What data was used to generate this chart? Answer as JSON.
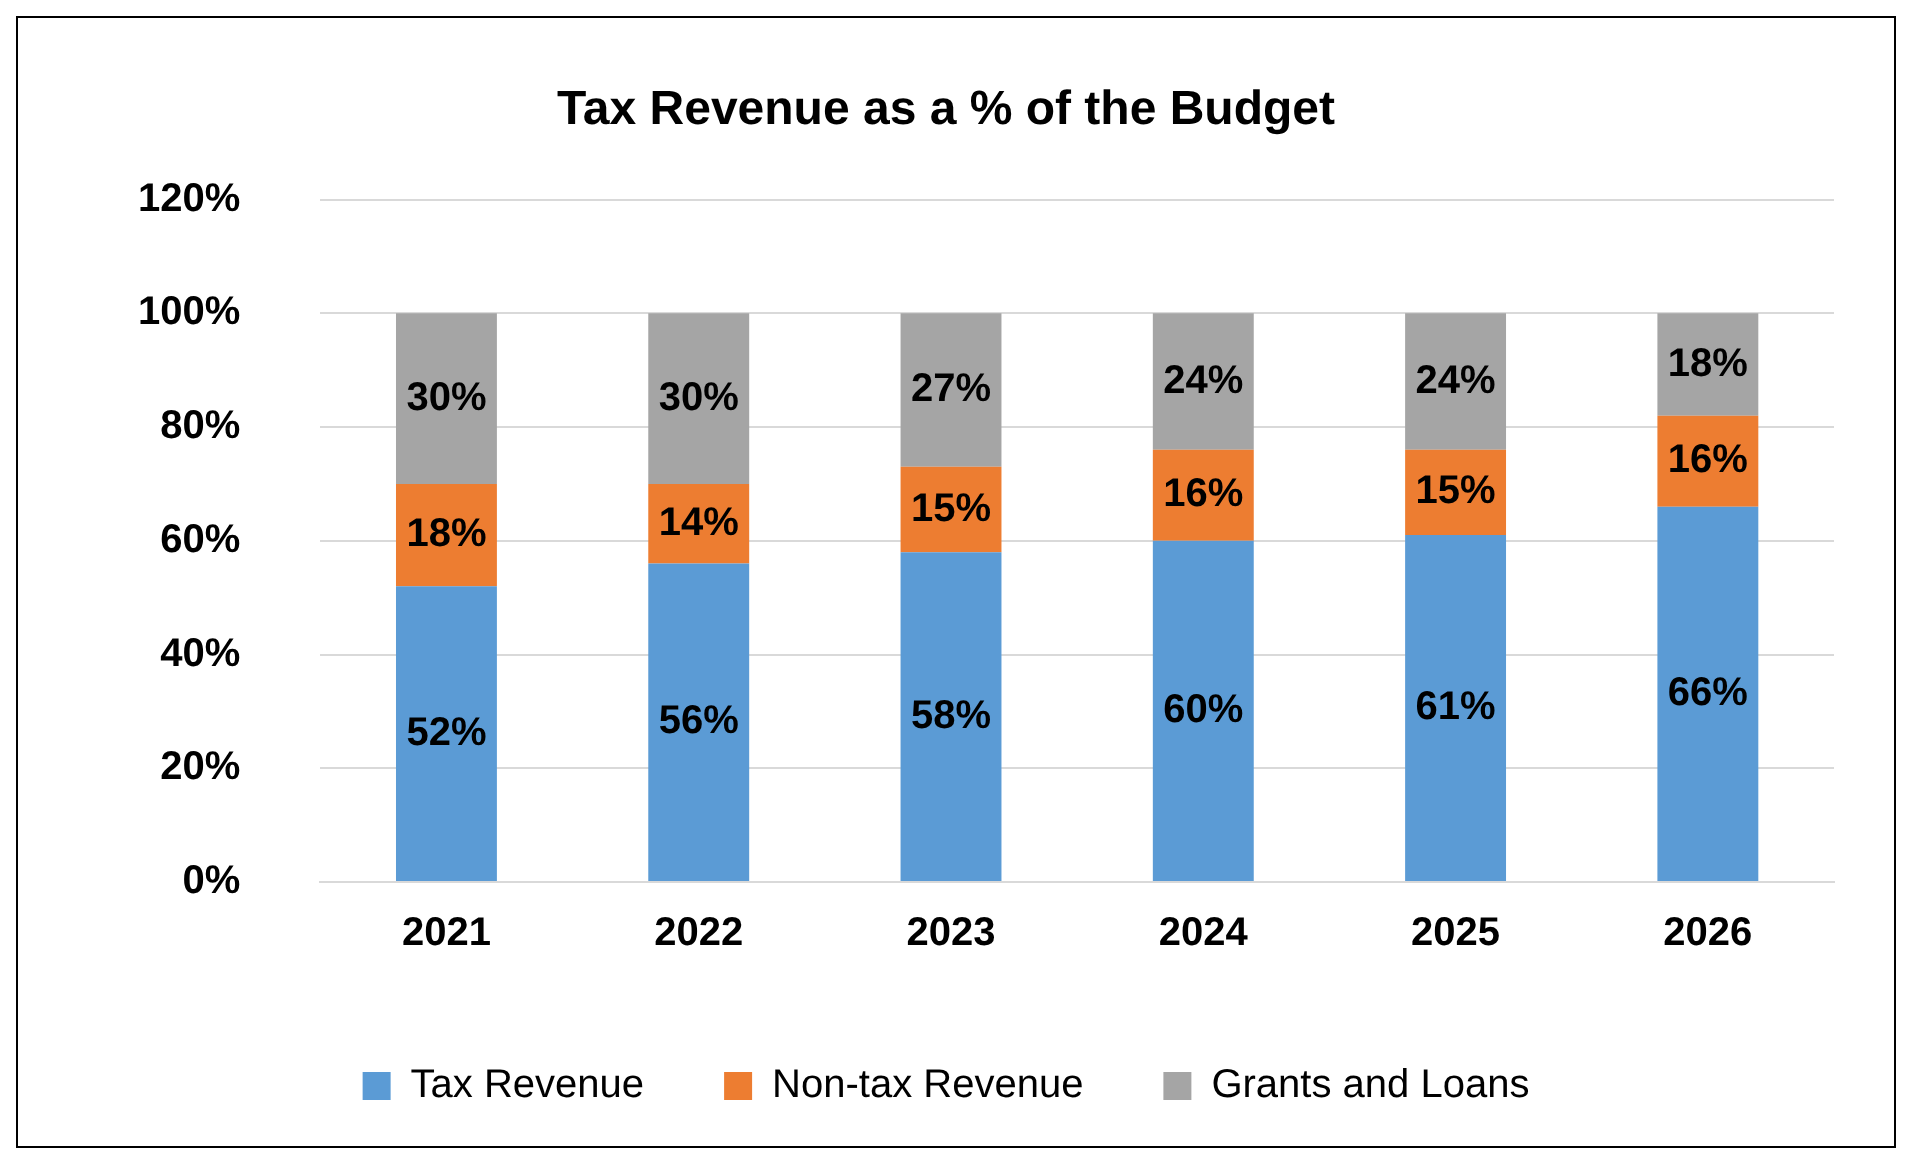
{
  "chart_data": {
    "type": "bar",
    "title": "Tax Revenue as a % of the Budget",
    "stacked": true,
    "categories": [
      "2021",
      "2022",
      "2023",
      "2024",
      "2025",
      "2026"
    ],
    "series": [
      {
        "name": "Tax Revenue",
        "color": "#5b9bd5",
        "values": [
          52,
          56,
          58,
          60,
          61,
          66
        ],
        "value_labels": [
          "52%",
          "56%",
          "58%",
          "60%",
          "61%",
          "66%"
        ]
      },
      {
        "name": "Non-tax Revenue",
        "color": "#ed7d31",
        "values": [
          18,
          14,
          15,
          16,
          15,
          16
        ],
        "value_labels": [
          "18%",
          "14%",
          "15%",
          "16%",
          "15%",
          "16%"
        ]
      },
      {
        "name": "Grants and Loans",
        "color": "#a5a5a5",
        "values": [
          30,
          30,
          27,
          24,
          24,
          18
        ],
        "value_labels": [
          "30%",
          "30%",
          "27%",
          "24%",
          "24%",
          "18%"
        ]
      }
    ],
    "ylim": [
      0,
      120
    ],
    "yticks": [
      {
        "value": 0,
        "label": "0%"
      },
      {
        "value": 20,
        "label": "20%"
      },
      {
        "value": 40,
        "label": "40%"
      },
      {
        "value": 60,
        "label": "60%"
      },
      {
        "value": 80,
        "label": "80%"
      },
      {
        "value": 100,
        "label": "100%"
      },
      {
        "value": 120,
        "label": "120%"
      }
    ],
    "grid": "y",
    "legend": "bottom"
  }
}
